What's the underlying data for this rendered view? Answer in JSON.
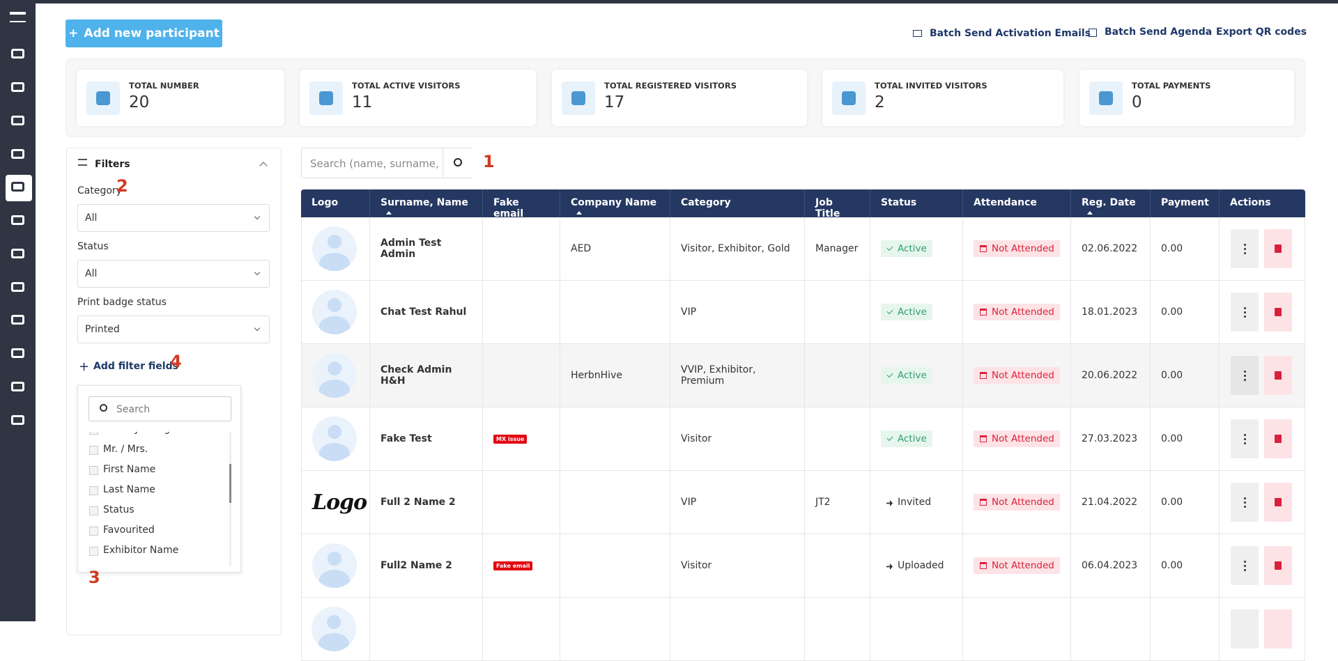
{
  "header": {
    "add_button": "Add new participant",
    "links": [
      "Batch Send Activation Emails",
      "Batch Send Agenda",
      "Export QR codes"
    ]
  },
  "stats": [
    {
      "label": "TOTAL NUMBER",
      "value": 20
    },
    {
      "label": "TOTAL ACTIVE VISITORS",
      "value": 11
    },
    {
      "label": "TOTAL REGISTERED VISITORS",
      "value": 17
    },
    {
      "label": "TOTAL INVITED VISITORS",
      "value": 2
    },
    {
      "label": "TOTAL PAYMENTS",
      "value": 0
    }
  ],
  "search": {
    "placeholder": "Search (name, surname, e"
  },
  "annotations": [
    "1",
    "2",
    "3",
    "4"
  ],
  "filters": {
    "title": "Filters",
    "fields": [
      {
        "label": "Category",
        "value": "All"
      },
      {
        "label": "Status",
        "value": "All"
      },
      {
        "label": "Print badge status",
        "value": "Printed"
      }
    ],
    "add_fields": "Add filter fields",
    "dropdown": {
      "search": "Search",
      "options": [
        "Activity categories",
        "Mr. / Mrs.",
        "First Name",
        "Last Name",
        "Status",
        "Favourited",
        "Exhibitor Name"
      ]
    }
  },
  "table": {
    "columns": [
      "Logo",
      "Surname, Name",
      "Fake email",
      "Company Name",
      "Category",
      "Job Title",
      "Status",
      "Attendance",
      "Reg. Date",
      "Payment",
      "Actions"
    ],
    "rows": [
      {
        "name": "Admin Test Admin",
        "fake_email": null,
        "company": "AED",
        "category": "Visitor, Exhibitor, Gold",
        "job": "Manager",
        "status": "Active",
        "attendance": "Not Attended",
        "date": "02.06.2022",
        "payment": "0.00"
      },
      {
        "name": "Chat Test Rahul",
        "fake_email": null,
        "company": null,
        "category": "VIP",
        "job": null,
        "status": "Active",
        "attendance": "Not Attended",
        "date": "18.01.2023",
        "payment": "0.00"
      },
      {
        "name": "Check Admin H&H",
        "fake_email": null,
        "company": "HerbnHive",
        "category": "VVIP, Exhibitor, Premium",
        "job": null,
        "status": "Active",
        "attendance": "Not Attended",
        "date": "20.06.2022",
        "payment": "0.00"
      },
      {
        "name": "Fake Test",
        "fake_email": "MX issue",
        "company": null,
        "category": "Visitor",
        "job": null,
        "status": "Active",
        "attendance": "Not Attended",
        "date": "27.03.2023",
        "payment": "0.00"
      },
      {
        "logo": "Logo",
        "name": "Full 2 Name 2",
        "fake_email": null,
        "company": null,
        "category": "VIP",
        "job": "JT2",
        "status": "Invited",
        "attendance": "Not Attended",
        "date": "21.04.2022",
        "payment": "0.00"
      },
      {
        "name": "Full2 Name 2",
        "fake_email": "Fake email",
        "company": null,
        "category": "Visitor",
        "job": null,
        "status": "Uploaded",
        "attendance": "Not Attended",
        "date": "06.04.2023",
        "payment": "0.00"
      }
    ]
  }
}
